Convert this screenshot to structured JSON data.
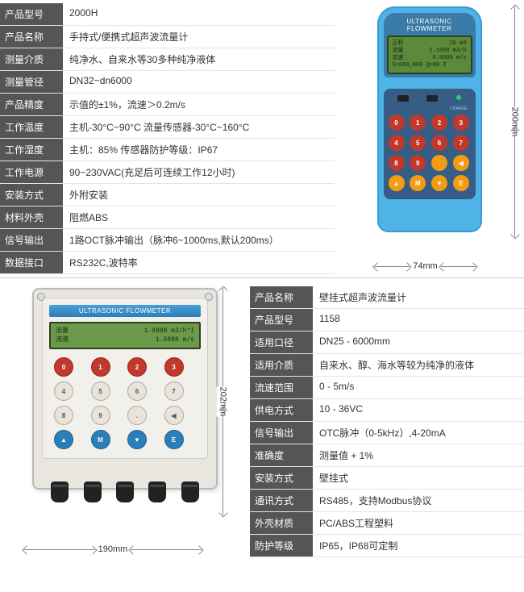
{
  "topSpecs": [
    {
      "label": "产品型号",
      "value": "2000H"
    },
    {
      "label": "产品名称",
      "value": "手持式/便携式超声波流量计"
    },
    {
      "label": "测量介质",
      "value": "纯净水、自来水等30多种纯净液体"
    },
    {
      "label": "测量管径",
      "value": "DN32~dn6000"
    },
    {
      "label": "产品精度",
      "value": "示值的±1%，流速＞0.2m/s"
    },
    {
      "label": "工作温度",
      "value": "主机-30°C~90°C  流量传感器-30°C~160°C"
    },
    {
      "label": "工作湿度",
      "value": "主机：85%  传感器防护等级：IP67"
    },
    {
      "label": "工作电源",
      "value": "90~230VAC(充足后可连续工作12小时)"
    },
    {
      "label": "安装方式",
      "value": "外附安装"
    },
    {
      "label": "材料外壳",
      "value": "阻燃ABS"
    },
    {
      "label": "信号输出",
      "value": "1路OCT脉冲输出（脉冲6~1000ms,默认200ms）"
    },
    {
      "label": "数据接口",
      "value": "RS232C,波特率"
    }
  ],
  "bottomSpecs": [
    {
      "label": "产品名称",
      "value": "壁挂式超声波流量计"
    },
    {
      "label": "产品型号",
      "value": "1158"
    },
    {
      "label": "适用口径",
      "value": "DN25 - 6000mm"
    },
    {
      "label": "适用介质",
      "value": "自来水、醇、海水等较为纯净的液体"
    },
    {
      "label": "流速范围",
      "value": "0 - 5m/s"
    },
    {
      "label": "供电方式",
      "value": "10 - 36VC"
    },
    {
      "label": "信号输出",
      "value": "OTC脉冲（0-5kHz）,4-20mA"
    },
    {
      "label": "准确度",
      "value": "测量值 + 1%"
    },
    {
      "label": "安装方式",
      "value": "壁挂式"
    },
    {
      "label": "通讯方式",
      "value": "RS485，支持Modbus协议"
    },
    {
      "label": "外壳材质",
      "value": "PC/ABS工程塑料"
    },
    {
      "label": "防护等级",
      "value": "IP65，IP68可定制"
    }
  ],
  "handheld": {
    "title": "ULTRASONIC FLOWMETER",
    "lcd": {
      "r1l": "正积",
      "r1r": "20 m3",
      "r2l": "流量",
      "r2r": "2.1888 m3/h",
      "r3l": "流速",
      "r3r": "0.8500 m/s",
      "r4": "S=000,000 Q=00 I"
    },
    "charge": "CHARGE",
    "keys": [
      "0",
      "1",
      "2",
      "3",
      "4",
      "5",
      "6",
      "7",
      "8",
      "9",
      ".",
      "◀",
      "▲",
      "M",
      "▼",
      "E"
    ],
    "dimH": "200mm",
    "dimW": "74mm"
  },
  "wallmount": {
    "title": "ULTRASONIC FLOWMETER",
    "lcd": {
      "r1l": "流量",
      "r1r": "1.8888 m3/h*I",
      "r2l": "流速",
      "r2r": "1.5888 m/s"
    },
    "keys": [
      "0",
      "1",
      "2",
      "3",
      "4",
      "5",
      "6",
      "7",
      "8",
      "9",
      ".",
      "◀",
      "▲",
      "M",
      "▼",
      "E"
    ],
    "dimH": "202mm",
    "dimW": "190mm"
  }
}
